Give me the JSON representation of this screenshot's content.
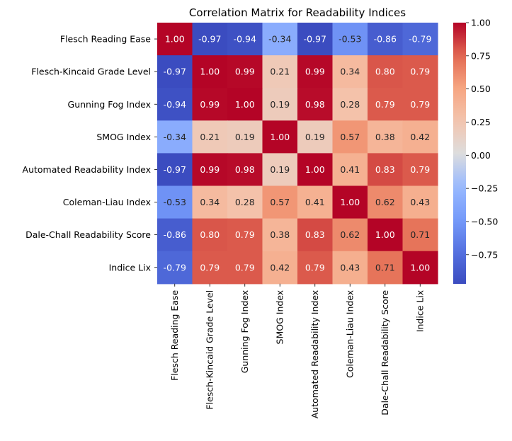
{
  "chart_data": {
    "type": "heatmap",
    "title": "Correlation Matrix for Readability Indices",
    "xlabel": "",
    "ylabel": "",
    "colormap": "coolwarm",
    "annotate": true,
    "value_format": "0.00",
    "categories": [
      "Flesch Reading Ease",
      "Flesch-Kincaid Grade Level",
      "Gunning Fog Index",
      "SMOG Index",
      "Automated Readability Index",
      "Coleman-Liau Index",
      "Dale-Chall Readability Score",
      "Indice Lix"
    ],
    "values": [
      [
        1.0,
        -0.97,
        -0.94,
        -0.34,
        -0.97,
        -0.53,
        -0.86,
        -0.79
      ],
      [
        -0.97,
        1.0,
        0.99,
        0.21,
        0.99,
        0.34,
        0.8,
        0.79
      ],
      [
        -0.94,
        0.99,
        1.0,
        0.19,
        0.98,
        0.28,
        0.79,
        0.79
      ],
      [
        -0.34,
        0.21,
        0.19,
        1.0,
        0.19,
        0.57,
        0.38,
        0.42
      ],
      [
        -0.97,
        0.99,
        0.98,
        0.19,
        1.0,
        0.41,
        0.83,
        0.79
      ],
      [
        -0.53,
        0.34,
        0.28,
        0.57,
        0.41,
        1.0,
        0.62,
        0.43
      ],
      [
        -0.86,
        0.8,
        0.79,
        0.38,
        0.83,
        0.62,
        1.0,
        0.71
      ],
      [
        -0.79,
        0.79,
        0.79,
        0.42,
        0.79,
        0.43,
        0.71,
        1.0
      ]
    ],
    "colorbar": {
      "range": [
        -0.97,
        1.0
      ],
      "ticks": [
        1.0,
        0.75,
        0.5,
        0.25,
        0.0,
        -0.25,
        -0.5,
        -0.75
      ],
      "tick_labels": [
        "1.00",
        "0.75",
        "0.50",
        "0.25",
        "0.00",
        "−0.25",
        "−0.50",
        "−0.75"
      ]
    }
  }
}
